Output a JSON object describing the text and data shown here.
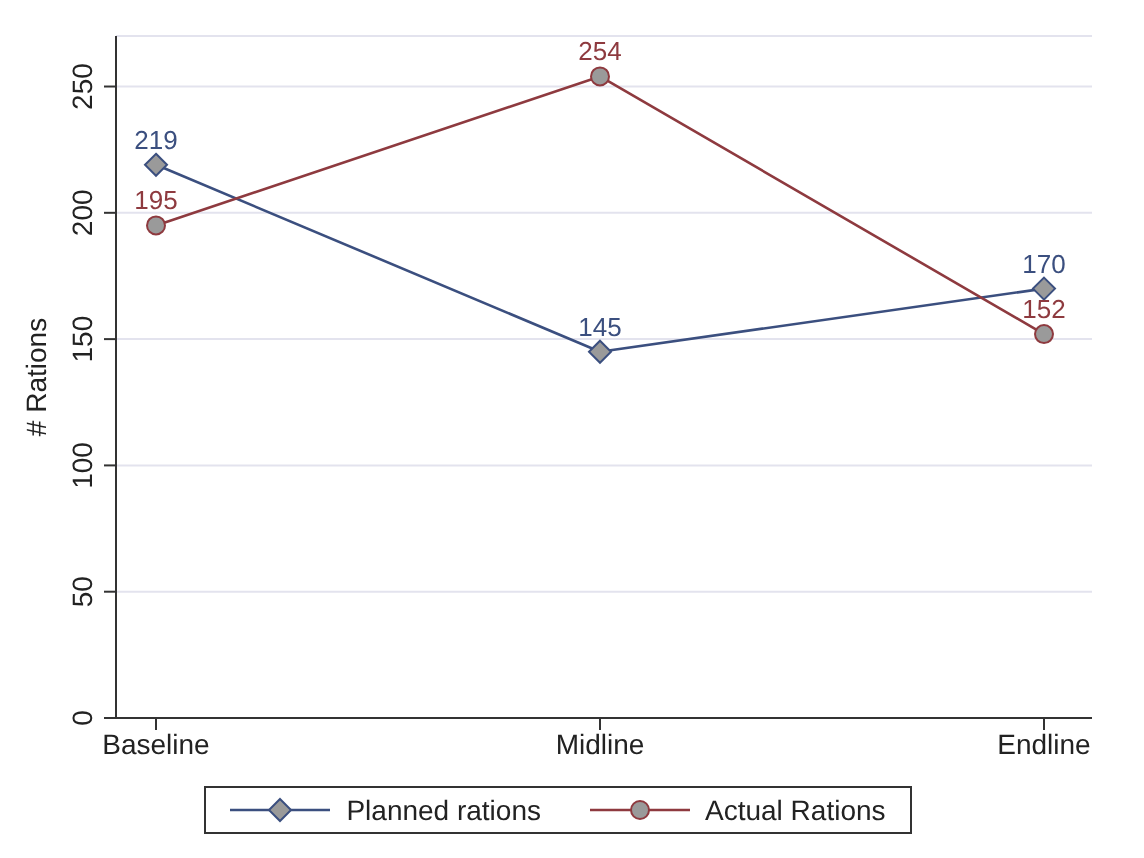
{
  "chart_data": {
    "type": "line",
    "ylabel": "# Rations",
    "categories": [
      "Baseline",
      "Midline",
      "Endline"
    ],
    "series": [
      {
        "name": "Planned rations",
        "color": "#3b4f7f",
        "values": [
          219,
          145,
          170
        ],
        "marker": "diamond"
      },
      {
        "name": "Actual Rations",
        "color": "#8e3a3f",
        "values": [
          195,
          254,
          152
        ],
        "marker": "circle"
      }
    ],
    "ylim": [
      0,
      270
    ],
    "yticks": [
      0,
      50,
      100,
      150,
      200,
      250
    ],
    "grid": "y",
    "legend": "bottom",
    "data_labels": true
  }
}
